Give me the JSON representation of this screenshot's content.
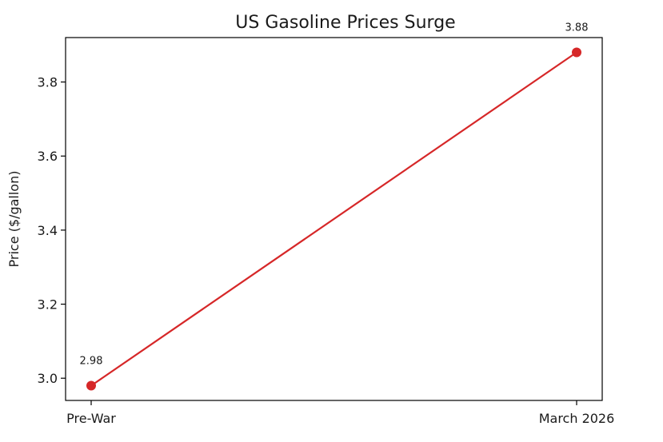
{
  "chart_data": {
    "type": "line",
    "title": "US Gasoline Prices Surge",
    "xlabel": "",
    "ylabel": "Price ($/gallon)",
    "categories": [
      "Pre-War",
      "March 2026"
    ],
    "series": [
      {
        "values": [
          2.98,
          3.88
        ],
        "data_labels": [
          "2.98",
          "3.88"
        ]
      }
    ],
    "ylim": [
      2.94,
      3.92
    ],
    "yticks": [
      3.0,
      3.2,
      3.4,
      3.6,
      3.8
    ],
    "ytick_labels": [
      "3.0",
      "3.2",
      "3.4",
      "3.6",
      "3.8"
    ],
    "grid": false,
    "line_color": "#d62728",
    "axis_color": "#000000"
  }
}
